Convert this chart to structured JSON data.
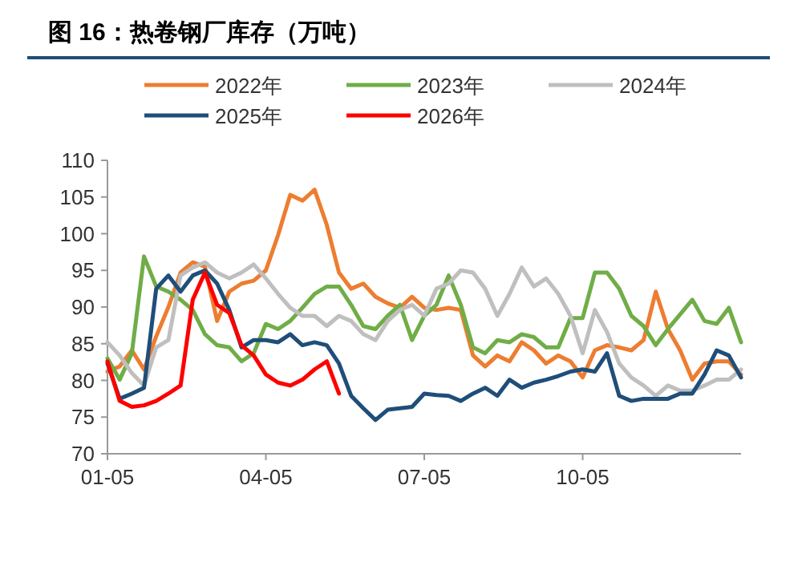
{
  "chart_data": {
    "type": "line",
    "title": "图 16：热卷钢厂库存（万吨）",
    "categories": [
      "01-05",
      null,
      null,
      null,
      null,
      null,
      null,
      null,
      null,
      null,
      null,
      null,
      null,
      "04-05",
      null,
      null,
      null,
      null,
      null,
      null,
      null,
      null,
      null,
      null,
      null,
      null,
      "07-05",
      null,
      null,
      null,
      null,
      null,
      null,
      null,
      null,
      null,
      null,
      null,
      null,
      "10-05",
      null,
      null,
      null,
      null,
      null,
      null,
      null,
      null,
      null,
      null,
      null,
      null,
      null
    ],
    "ylim": [
      70,
      110
    ],
    "yticks": [
      70,
      75,
      80,
      85,
      90,
      95,
      100,
      105,
      110
    ],
    "legend": "top",
    "grid": false,
    "series": [
      {
        "name": "2022年",
        "color": "#ed7d31",
        "values": [
          81.2,
          81.9,
          84.1,
          81.5,
          86,
          90,
          94.7,
          96.1,
          95.5,
          88.1,
          92.1,
          93.2,
          93.6,
          95,
          99.8,
          105.3,
          104.5,
          106,
          101.2,
          94.7,
          92.5,
          93.2,
          91.4,
          90.5,
          89.9,
          91.4,
          89.9,
          89.6,
          89.9,
          89.6,
          83.4,
          81.9,
          83.4,
          82.6,
          85.2,
          84.1,
          82.3,
          83.4,
          82.6,
          80.4,
          84.1,
          84.8,
          84.5,
          84.1,
          85.5,
          92.1,
          87,
          84.1,
          80.1,
          82.3,
          82.6,
          82.6,
          80.8
        ]
      },
      {
        "name": "2023年",
        "color": "#70ad47",
        "values": [
          83,
          80.1,
          83.7,
          96.9,
          92.8,
          92.1,
          91,
          89.6,
          86.3,
          84.8,
          84.5,
          82.6,
          83.7,
          87.7,
          87,
          88.1,
          89.9,
          91.8,
          92.8,
          92.8,
          90.3,
          87.4,
          87,
          88.8,
          90.3,
          85.5,
          88.8,
          90.3,
          94.3,
          90.3,
          84.5,
          83.7,
          85.5,
          85.2,
          86.3,
          85.9,
          84.5,
          84.5,
          88.5,
          88.5,
          94.7,
          94.7,
          92.5,
          88.8,
          87.4,
          84.8,
          87,
          89,
          91,
          88.1,
          87.7,
          89.9,
          85.2
        ]
      },
      {
        "name": "2024年",
        "color": "#bfbfbf",
        "values": [
          85.2,
          83.4,
          81,
          79.3,
          84.5,
          85.5,
          94.3,
          95.4,
          96.1,
          94.7,
          93.9,
          94.7,
          95.8,
          93.9,
          91.8,
          89.9,
          88.8,
          88.8,
          87.4,
          88.8,
          88.1,
          86.3,
          85.5,
          88.1,
          89.6,
          90.3,
          88.8,
          92.5,
          93.2,
          95,
          94.7,
          92.5,
          88.8,
          91.8,
          95.4,
          92.8,
          93.9,
          91.8,
          88.8,
          83.7,
          89.6,
          86.6,
          82.3,
          80.4,
          79.3,
          77.9,
          79.3,
          78.6,
          78.6,
          79.3,
          80.1,
          80.1,
          81.5
        ]
      },
      {
        "name": "2025年",
        "color": "#1f4e79",
        "values": [
          82.3,
          77.5,
          78.2,
          79,
          92.5,
          94.3,
          92.1,
          94.3,
          95,
          93.2,
          89.6,
          84.5,
          85.5,
          85.5,
          85.2,
          86.3,
          84.8,
          85.2,
          84.8,
          82.3,
          77.9,
          76.2,
          74.6,
          76,
          76.2,
          76.4,
          78.2,
          78,
          77.9,
          77.2,
          78.2,
          79,
          77.9,
          80.1,
          79,
          79.7,
          80.1,
          80.6,
          81.2,
          81.5,
          81.2,
          83.7,
          77.9,
          77.2,
          77.5,
          77.5,
          77.5,
          78.2,
          78.2,
          80.8,
          84.1,
          83.4,
          80.4
        ]
      },
      {
        "name": "2026年",
        "color": "#ff0000",
        "values": [
          82.6,
          77.2,
          76.4,
          76.6,
          77.2,
          78.2,
          79.3,
          91,
          94.7,
          90.3,
          89.2,
          84.8,
          83.4,
          80.8,
          79.7,
          79.3,
          80.1,
          81.5,
          82.6,
          78.2,
          null,
          null,
          null,
          null,
          null,
          null,
          null,
          null,
          null,
          null,
          null,
          null,
          null,
          null,
          null,
          null,
          null,
          null,
          null,
          null,
          null,
          null,
          null,
          null,
          null,
          null,
          null,
          null,
          null,
          null,
          null,
          null,
          null
        ]
      }
    ]
  }
}
